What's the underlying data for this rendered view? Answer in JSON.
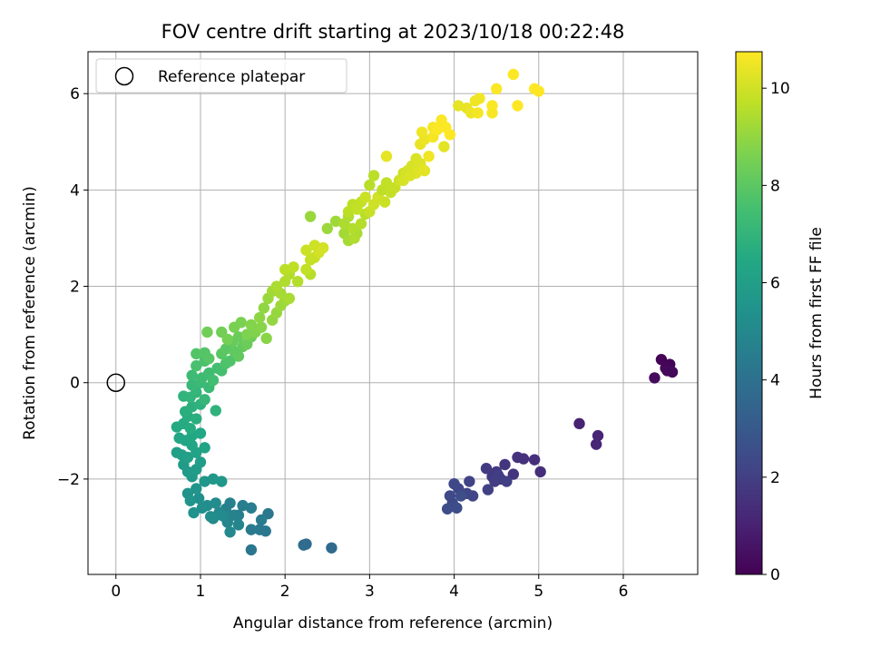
{
  "chart_data": {
    "type": "scatter",
    "title": "FOV centre drift starting at 2023/10/18 00:22:48",
    "xlabel": "Angular distance from reference (arcmin)",
    "ylabel": "Rotation from reference (arcmin)",
    "xlim": [
      -0.33,
      6.88
    ],
    "ylim": [
      -3.98,
      6.87
    ],
    "xticks": [
      0,
      1,
      2,
      3,
      4,
      5,
      6
    ],
    "xtick_labels": [
      "0",
      "1",
      "2",
      "3",
      "4",
      "5",
      "6"
    ],
    "yticks": [
      -2,
      0,
      2,
      4,
      6
    ],
    "ytick_labels": [
      "−2",
      "0",
      "2",
      "4",
      "6"
    ],
    "grid": true,
    "legend": {
      "placement": "top-left",
      "entries": [
        {
          "label": "Reference platepar",
          "marker": "open-circle"
        }
      ]
    },
    "reference_point": {
      "x": 0,
      "y": 0
    },
    "colorbar": {
      "label": "Hours from first FF file",
      "range": [
        0,
        10.75
      ],
      "ticks": [
        0,
        2,
        4,
        6,
        8,
        10
      ],
      "tick_labels": [
        "0",
        "2",
        "4",
        "6",
        "8",
        "10"
      ],
      "colormap": "viridis"
    },
    "series": [
      {
        "columns": [
          "x",
          "y",
          "hours"
        ],
        "points": [
          [
            6.45,
            0.48,
            0.05
          ],
          [
            6.55,
            0.38,
            0.1
          ],
          [
            6.5,
            0.3,
            0.15
          ],
          [
            6.58,
            0.22,
            0.2
          ],
          [
            6.52,
            0.25,
            0.25
          ],
          [
            6.37,
            0.1,
            0.3
          ],
          [
            5.48,
            -0.85,
            1.0
          ],
          [
            5.7,
            -1.1,
            1.1
          ],
          [
            5.68,
            -1.28,
            1.15
          ],
          [
            5.02,
            -1.85,
            1.4
          ],
          [
            4.95,
            -1.6,
            1.45
          ],
          [
            4.82,
            -1.58,
            1.5
          ],
          [
            4.75,
            -1.55,
            1.55
          ],
          [
            4.7,
            -1.9,
            1.6
          ],
          [
            4.6,
            -1.7,
            1.65
          ],
          [
            4.55,
            -2.0,
            1.7
          ],
          [
            4.5,
            -1.85,
            1.75
          ],
          [
            4.45,
            -1.95,
            1.8
          ],
          [
            4.38,
            -1.78,
            1.85
          ],
          [
            4.48,
            -2.05,
            1.9
          ],
          [
            4.52,
            -1.92,
            1.95
          ],
          [
            4.62,
            -2.05,
            2.0
          ],
          [
            4.4,
            -2.22,
            2.05
          ],
          [
            4.18,
            -2.05,
            2.1
          ],
          [
            4.22,
            -2.35,
            2.15
          ],
          [
            4.15,
            -2.3,
            2.2
          ],
          [
            4.05,
            -2.2,
            2.25
          ],
          [
            4.0,
            -2.1,
            2.3
          ],
          [
            3.95,
            -2.35,
            2.35
          ],
          [
            3.98,
            -2.5,
            2.4
          ],
          [
            3.92,
            -2.62,
            2.45
          ],
          [
            4.03,
            -2.6,
            2.5
          ],
          [
            4.08,
            -2.35,
            2.55
          ],
          [
            2.55,
            -3.43,
            3.7
          ],
          [
            2.25,
            -3.35,
            3.75
          ],
          [
            2.22,
            -3.37,
            3.8
          ],
          [
            1.6,
            -3.47,
            4.2
          ],
          [
            1.8,
            -2.72,
            4.25
          ],
          [
            1.77,
            -3.08,
            4.3
          ],
          [
            1.7,
            -3.05,
            4.35
          ],
          [
            1.6,
            -3.05,
            4.4
          ],
          [
            1.72,
            -2.85,
            4.45
          ],
          [
            1.6,
            -2.6,
            4.5
          ],
          [
            1.5,
            -2.55,
            4.55
          ],
          [
            1.45,
            -2.75,
            4.6
          ],
          [
            1.35,
            -2.5,
            4.65
          ],
          [
            1.3,
            -2.62,
            4.7
          ],
          [
            1.4,
            -2.75,
            4.75
          ],
          [
            1.32,
            -2.9,
            4.8
          ],
          [
            1.45,
            -2.95,
            4.85
          ],
          [
            1.28,
            -2.78,
            4.9
          ],
          [
            1.22,
            -2.7,
            4.95
          ],
          [
            1.15,
            -2.82,
            5.0
          ],
          [
            1.35,
            -3.1,
            5.05
          ],
          [
            1.25,
            -2.75,
            5.1
          ],
          [
            1.18,
            -2.5,
            5.15
          ],
          [
            1.08,
            -2.55,
            5.2
          ],
          [
            1.12,
            -2.78,
            5.25
          ],
          [
            1.02,
            -2.6,
            5.3
          ],
          [
            0.98,
            -2.4,
            5.35
          ],
          [
            0.92,
            -2.7,
            5.4
          ],
          [
            0.85,
            -2.3,
            5.45
          ],
          [
            0.88,
            -2.45,
            5.5
          ],
          [
            0.95,
            -2.2,
            5.55
          ],
          [
            1.05,
            -2.05,
            5.6
          ],
          [
            1.15,
            -2.0,
            5.65
          ],
          [
            1.25,
            -2.05,
            5.7
          ],
          [
            0.9,
            -1.95,
            5.75
          ],
          [
            0.85,
            -1.85,
            5.8
          ],
          [
            0.8,
            -1.7,
            5.85
          ],
          [
            0.95,
            -1.8,
            5.9
          ],
          [
            1.0,
            -1.65,
            5.95
          ],
          [
            0.78,
            -1.5,
            6.0
          ],
          [
            0.72,
            -1.45,
            6.05
          ],
          [
            0.85,
            -1.55,
            6.1
          ],
          [
            0.95,
            -1.45,
            6.15
          ],
          [
            1.05,
            -1.35,
            6.2
          ],
          [
            0.9,
            -1.3,
            6.25
          ],
          [
            0.82,
            -1.2,
            6.3
          ],
          [
            0.75,
            -1.15,
            6.35
          ],
          [
            0.9,
            -1.1,
            6.4
          ],
          [
            1.0,
            -1.05,
            6.45
          ],
          [
            0.72,
            -0.92,
            6.5
          ],
          [
            0.8,
            -0.85,
            6.55
          ],
          [
            0.88,
            -0.95,
            6.6
          ],
          [
            0.85,
            -0.7,
            6.65
          ],
          [
            0.95,
            -0.75,
            6.7
          ],
          [
            0.82,
            -0.6,
            6.75
          ],
          [
            0.9,
            -0.5,
            6.8
          ],
          [
            1.0,
            -0.45,
            6.85
          ],
          [
            1.18,
            -0.58,
            6.9
          ],
          [
            0.8,
            -0.28,
            6.95
          ],
          [
            0.88,
            -0.3,
            7.0
          ],
          [
            0.95,
            -0.2,
            7.05
          ],
          [
            1.05,
            -0.35,
            7.1
          ],
          [
            0.9,
            -0.05,
            7.15
          ],
          [
            1.0,
            0.0,
            7.2
          ],
          [
            1.1,
            -0.1,
            7.25
          ],
          [
            0.9,
            0.15,
            7.3
          ],
          [
            1.02,
            0.1,
            7.35
          ],
          [
            1.1,
            0.2,
            7.4
          ],
          [
            1.15,
            0.05,
            7.45
          ],
          [
            1.2,
            0.3,
            7.5
          ],
          [
            1.25,
            0.25,
            7.55
          ],
          [
            0.95,
            0.35,
            7.6
          ],
          [
            1.05,
            0.45,
            7.65
          ],
          [
            1.3,
            0.4,
            7.7
          ],
          [
            1.35,
            0.45,
            7.75
          ],
          [
            0.95,
            0.6,
            7.8
          ],
          [
            1.05,
            0.62,
            7.85
          ],
          [
            1.1,
            0.5,
            7.9
          ],
          [
            1.25,
            0.6,
            7.95
          ],
          [
            1.3,
            0.7,
            8.0
          ],
          [
            1.4,
            0.65,
            8.05
          ],
          [
            1.45,
            0.55,
            8.1
          ],
          [
            1.5,
            0.75,
            8.15
          ],
          [
            1.38,
            0.85,
            8.2
          ],
          [
            1.45,
            0.95,
            8.25
          ],
          [
            1.55,
            0.8,
            8.3
          ],
          [
            1.6,
            0.95,
            8.35
          ],
          [
            1.08,
            1.05,
            8.4
          ],
          [
            1.25,
            1.05,
            8.45
          ],
          [
            1.32,
            0.9,
            8.5
          ],
          [
            1.4,
            1.15,
            8.55
          ],
          [
            1.48,
            1.25,
            8.6
          ],
          [
            1.55,
            1.0,
            8.65
          ],
          [
            1.65,
            1.05,
            8.7
          ],
          [
            1.6,
            1.2,
            8.75
          ],
          [
            1.72,
            1.15,
            8.8
          ],
          [
            1.78,
            0.92,
            8.85
          ],
          [
            1.7,
            1.35,
            8.9
          ],
          [
            1.75,
            1.55,
            8.95
          ],
          [
            1.85,
            1.3,
            9.0
          ],
          [
            1.9,
            1.45,
            9.05
          ],
          [
            1.8,
            1.75,
            9.1
          ],
          [
            1.95,
            1.6,
            9.15
          ],
          [
            2.0,
            1.7,
            9.2
          ],
          [
            1.85,
            1.9,
            9.25
          ],
          [
            1.95,
            1.85,
            9.3
          ],
          [
            2.05,
            1.75,
            9.35
          ],
          [
            1.9,
            2.0,
            9.4
          ],
          [
            2.0,
            2.1,
            9.45
          ],
          [
            2.05,
            2.25,
            9.5
          ],
          [
            2.15,
            2.1,
            9.55
          ],
          [
            2.3,
            2.25,
            9.6
          ],
          [
            2.0,
            2.35,
            9.65
          ],
          [
            2.1,
            2.4,
            9.7
          ],
          [
            2.25,
            2.35,
            9.75
          ],
          [
            2.3,
            2.55,
            9.8
          ],
          [
            2.35,
            2.6,
            9.85
          ],
          [
            2.25,
            2.75,
            9.9
          ],
          [
            2.35,
            2.85,
            9.95
          ],
          [
            2.4,
            2.7,
            10.0
          ],
          [
            2.45,
            2.8,
            10.05
          ],
          [
            2.3,
            3.45,
            9.1
          ],
          [
            2.5,
            3.2,
            9.15
          ],
          [
            2.6,
            3.35,
            9.2
          ],
          [
            2.7,
            3.1,
            9.25
          ],
          [
            2.75,
            2.95,
            9.3
          ],
          [
            2.85,
            3.1,
            9.35
          ],
          [
            2.7,
            3.3,
            9.4
          ],
          [
            2.75,
            3.45,
            9.45
          ],
          [
            2.8,
            3.2,
            9.5
          ],
          [
            2.9,
            3.3,
            9.55
          ],
          [
            2.95,
            3.5,
            9.6
          ],
          [
            2.75,
            3.55,
            9.65
          ],
          [
            2.8,
            3.7,
            9.7
          ],
          [
            2.85,
            3.6,
            9.75
          ],
          [
            2.9,
            3.75,
            9.8
          ],
          [
            3.0,
            3.55,
            9.85
          ],
          [
            2.95,
            3.85,
            9.9
          ],
          [
            3.05,
            3.7,
            9.95
          ],
          [
            3.1,
            3.85,
            10.0
          ],
          [
            2.82,
            3.0,
            9.45
          ],
          [
            3.0,
            4.1,
            9.6
          ],
          [
            3.05,
            4.3,
            9.65
          ],
          [
            3.15,
            4.0,
            9.7
          ],
          [
            3.2,
            4.15,
            9.75
          ],
          [
            3.25,
            3.95,
            9.8
          ],
          [
            3.3,
            4.05,
            9.85
          ],
          [
            3.18,
            3.75,
            9.9
          ],
          [
            3.35,
            4.2,
            9.95
          ],
          [
            3.4,
            4.35,
            10.0
          ],
          [
            3.45,
            4.4,
            10.05
          ],
          [
            3.5,
            4.5,
            10.1
          ],
          [
            3.55,
            4.65,
            10.15
          ],
          [
            3.6,
            4.55,
            10.2
          ],
          [
            3.55,
            4.35,
            10.25
          ],
          [
            3.65,
            4.4,
            10.3
          ],
          [
            3.2,
            4.7,
            10.35
          ],
          [
            3.6,
            4.95,
            10.4
          ],
          [
            3.65,
            5.05,
            10.45
          ],
          [
            3.62,
            5.2,
            10.5
          ],
          [
            3.7,
            4.7,
            10.55
          ],
          [
            3.75,
            5.1,
            10.6
          ],
          [
            3.75,
            5.3,
            10.65
          ],
          [
            3.8,
            5.25,
            10.7
          ],
          [
            3.85,
            5.45,
            10.72
          ],
          [
            3.9,
            5.3,
            10.74
          ],
          [
            3.95,
            5.15,
            10.75
          ],
          [
            3.88,
            4.9,
            10.3
          ],
          [
            4.05,
            5.75,
            10.35
          ],
          [
            4.15,
            5.7,
            10.4
          ],
          [
            4.2,
            5.6,
            10.45
          ],
          [
            4.25,
            5.85,
            10.5
          ],
          [
            4.3,
            5.9,
            10.55
          ],
          [
            4.28,
            5.6,
            10.6
          ],
          [
            4.45,
            5.6,
            10.65
          ],
          [
            4.45,
            5.75,
            10.7
          ],
          [
            4.5,
            6.1,
            10.72
          ],
          [
            4.7,
            6.4,
            10.74
          ],
          [
            4.75,
            5.75,
            10.75
          ],
          [
            4.95,
            6.1,
            10.75
          ],
          [
            5.0,
            6.05,
            10.75
          ],
          [
            3.4,
            4.2,
            10.1
          ],
          [
            3.48,
            4.3,
            10.15
          ]
        ]
      }
    ]
  }
}
